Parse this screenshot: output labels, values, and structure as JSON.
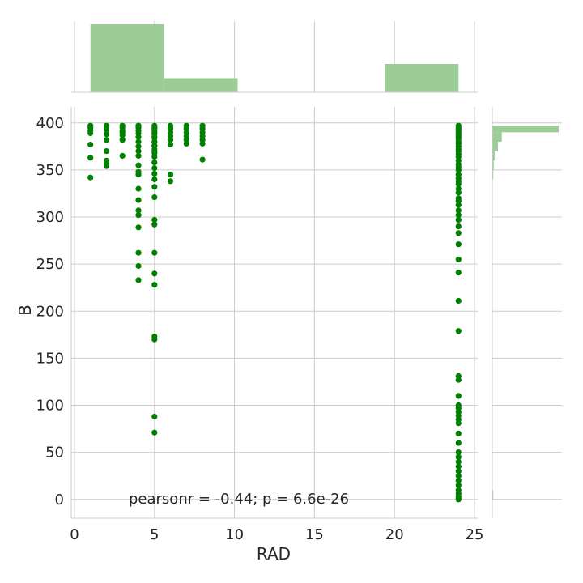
{
  "chart_data": {
    "type": "scatter",
    "xlabel": "RAD",
    "ylabel": "B",
    "xlim": [
      -0.2,
      25.2
    ],
    "ylim": [
      -20,
      417
    ],
    "xticks": [
      0,
      5,
      10,
      15,
      20,
      25
    ],
    "yticks": [
      0,
      50,
      100,
      150,
      200,
      250,
      300,
      350,
      400
    ],
    "grid": true,
    "annotation": "pearsonr = -0.44; p = 6.6e-26",
    "colors": {
      "point": "#008000",
      "hist": "#9ccd97",
      "grid": "#cccccc",
      "text": "#262626"
    },
    "series": [
      {
        "x": [
          1,
          1,
          1,
          1,
          1,
          1,
          1,
          2,
          2,
          2,
          2,
          2,
          2,
          2,
          2,
          2,
          3,
          3,
          3,
          3,
          3,
          3,
          3,
          4,
          4,
          4,
          4,
          4,
          4,
          4,
          4,
          4,
          4,
          4,
          4,
          4,
          4,
          4,
          4,
          4,
          4,
          4,
          4,
          4,
          5,
          5,
          5,
          5,
          5,
          5,
          5,
          5,
          5,
          5,
          5,
          5,
          5,
          5,
          5,
          5,
          5,
          5,
          5,
          5,
          5,
          5,
          5,
          5,
          5,
          5,
          5,
          5,
          5,
          5,
          5,
          6,
          6,
          6,
          6,
          6,
          6,
          6,
          6,
          7,
          7,
          7,
          7,
          7,
          7,
          8,
          8,
          8,
          8,
          8,
          8,
          8,
          24,
          24,
          24,
          24,
          24,
          24,
          24,
          24,
          24,
          24,
          24,
          24,
          24,
          24,
          24,
          24,
          24,
          24,
          24,
          24,
          24,
          24,
          24,
          24,
          24,
          24,
          24,
          24,
          24,
          24,
          24,
          24,
          24,
          24,
          24,
          24,
          24,
          24,
          24,
          24,
          24,
          24,
          24,
          24,
          24,
          24,
          24,
          24,
          24,
          24,
          24,
          24,
          24,
          24,
          24,
          24,
          24,
          24,
          24,
          24,
          24,
          24
        ],
        "y": [
          397,
          395,
          392,
          389,
          377,
          363,
          342,
          397,
          395,
          393,
          388,
          382,
          370,
          360,
          357,
          354,
          397,
          395,
          392,
          390,
          387,
          382,
          365,
          397,
          395,
          392,
          389,
          385,
          380,
          375,
          370,
          365,
          355,
          348,
          345,
          330,
          318,
          307,
          302,
          289,
          262,
          248,
          233,
          397,
          395,
          392,
          388,
          384,
          380,
          376,
          372,
          368,
          364,
          358,
          352,
          346,
          340,
          332,
          321,
          297,
          292,
          262,
          240,
          228,
          173,
          170,
          88,
          71,
          397,
          394,
          390,
          385,
          380,
          376,
          370,
          345,
          338,
          397,
          394,
          390,
          386,
          382,
          377,
          397,
          394,
          390,
          386,
          382,
          378,
          397,
          394,
          390,
          386,
          382,
          378,
          361,
          397,
          395,
          393,
          391,
          389,
          387,
          385,
          383,
          380,
          378,
          375,
          372,
          370,
          367,
          364,
          360,
          356,
          353,
          350,
          345,
          341,
          338,
          335,
          330,
          326,
          320,
          317,
          313,
          307,
          302,
          297,
          290,
          283,
          271,
          255,
          241,
          211,
          179,
          131,
          127,
          110,
          100,
          97,
          93,
          89,
          85,
          81,
          70,
          60,
          50,
          45,
          40,
          35,
          30,
          25,
          20,
          15,
          10,
          6,
          3,
          1,
          0
        ],
        "hist_x": {
          "bins": [
            [
              1,
              5.6
            ],
            [
              5.6,
              10.2
            ],
            [
              10.2,
              14.8
            ],
            [
              14.8,
              19.4
            ],
            [
              19.4,
              24
            ]
          ],
          "counts": [
            240,
            50,
            0,
            0,
            100
          ]
        },
        "hist_y": {
          "bins": [
            [
              0,
              10
            ],
            [
              340,
              350
            ],
            [
              350,
              360
            ],
            [
              360,
              370
            ],
            [
              370,
              380
            ],
            [
              380,
              390
            ],
            [
              390,
              397
            ]
          ],
          "counts": [
            2,
            2,
            3,
            5,
            12,
            20,
            140
          ]
        }
      }
    ]
  }
}
